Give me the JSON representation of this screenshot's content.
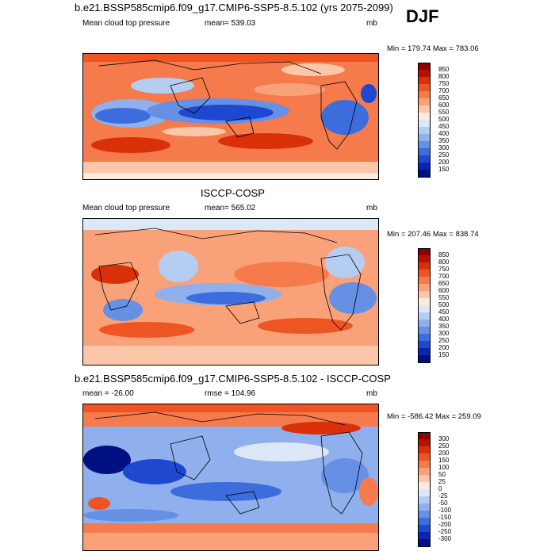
{
  "season": "DJF",
  "chart_data": [
    {
      "type": "heatmap",
      "panel": "model",
      "title": "b.e21.BSSP585cmip6.f09_g17.CMIP6-SSP5-8.5.102 (yrs 2075-2099)",
      "left_label": "Mean cloud top pressure",
      "center_label": "mean= 539.03",
      "units": "mb",
      "min": 179.74,
      "max": 783.06,
      "minmax_text": "Min = 179.74 Max = 783.06",
      "colorbar": {
        "labels": [
          "850",
          "800",
          "750",
          "700",
          "650",
          "600",
          "550",
          "500",
          "450",
          "400",
          "350",
          "300",
          "250",
          "200",
          "150"
        ],
        "colors": [
          "#8c0000",
          "#b81000",
          "#d9300a",
          "#ee5522",
          "#f57a4c",
          "#f9a27a",
          "#fcc7a8",
          "#fdecdd",
          "#dce8f7",
          "#b6cdf2",
          "#8fb0ec",
          "#6690e4",
          "#3d6ddc",
          "#1e48cf",
          "#0c24b4",
          "#001080"
        ]
      }
    },
    {
      "type": "heatmap",
      "panel": "observations",
      "title": "ISCCP-COSP",
      "left_label": "Mean cloud top pressure",
      "center_label": "mean= 565.02",
      "units": "mb",
      "min": 207.46,
      "max": 838.74,
      "minmax_text": "Min = 207.46 Max = 838.74",
      "colorbar": {
        "labels": [
          "850",
          "800",
          "750",
          "700",
          "650",
          "600",
          "550",
          "500",
          "450",
          "400",
          "350",
          "300",
          "250",
          "200",
          "150"
        ],
        "colors": [
          "#8c0000",
          "#b81000",
          "#d9300a",
          "#ee5522",
          "#f57a4c",
          "#f9a27a",
          "#fcc7a8",
          "#fdecdd",
          "#dce8f7",
          "#b6cdf2",
          "#8fb0ec",
          "#6690e4",
          "#3d6ddc",
          "#1e48cf",
          "#0c24b4",
          "#001080"
        ]
      }
    },
    {
      "type": "heatmap",
      "panel": "difference",
      "title": "b.e21.BSSP585cmip6.f09_g17.CMIP6-SSP5-8.5.102 - ISCCP-COSP",
      "left_label": "mean = -26.00",
      "center_label": "rmse = 104.96",
      "units": "mb",
      "min": -586.42,
      "max": 259.09,
      "minmax_text": "Min = -586.42 Max = 259.09",
      "colorbar": {
        "labels": [
          "300",
          "250",
          "200",
          "150",
          "100",
          "50",
          "25",
          "0",
          "-25",
          "-50",
          "-100",
          "-150",
          "-200",
          "-250",
          "-300"
        ],
        "colors": [
          "#8c0000",
          "#b81000",
          "#d9300a",
          "#ee5522",
          "#f57a4c",
          "#f9a27a",
          "#fcc7a8",
          "#fdecdd",
          "#dce8f7",
          "#b6cdf2",
          "#8fb0ec",
          "#6690e4",
          "#3d6ddc",
          "#1e48cf",
          "#0c24b4",
          "#001080"
        ]
      }
    }
  ]
}
